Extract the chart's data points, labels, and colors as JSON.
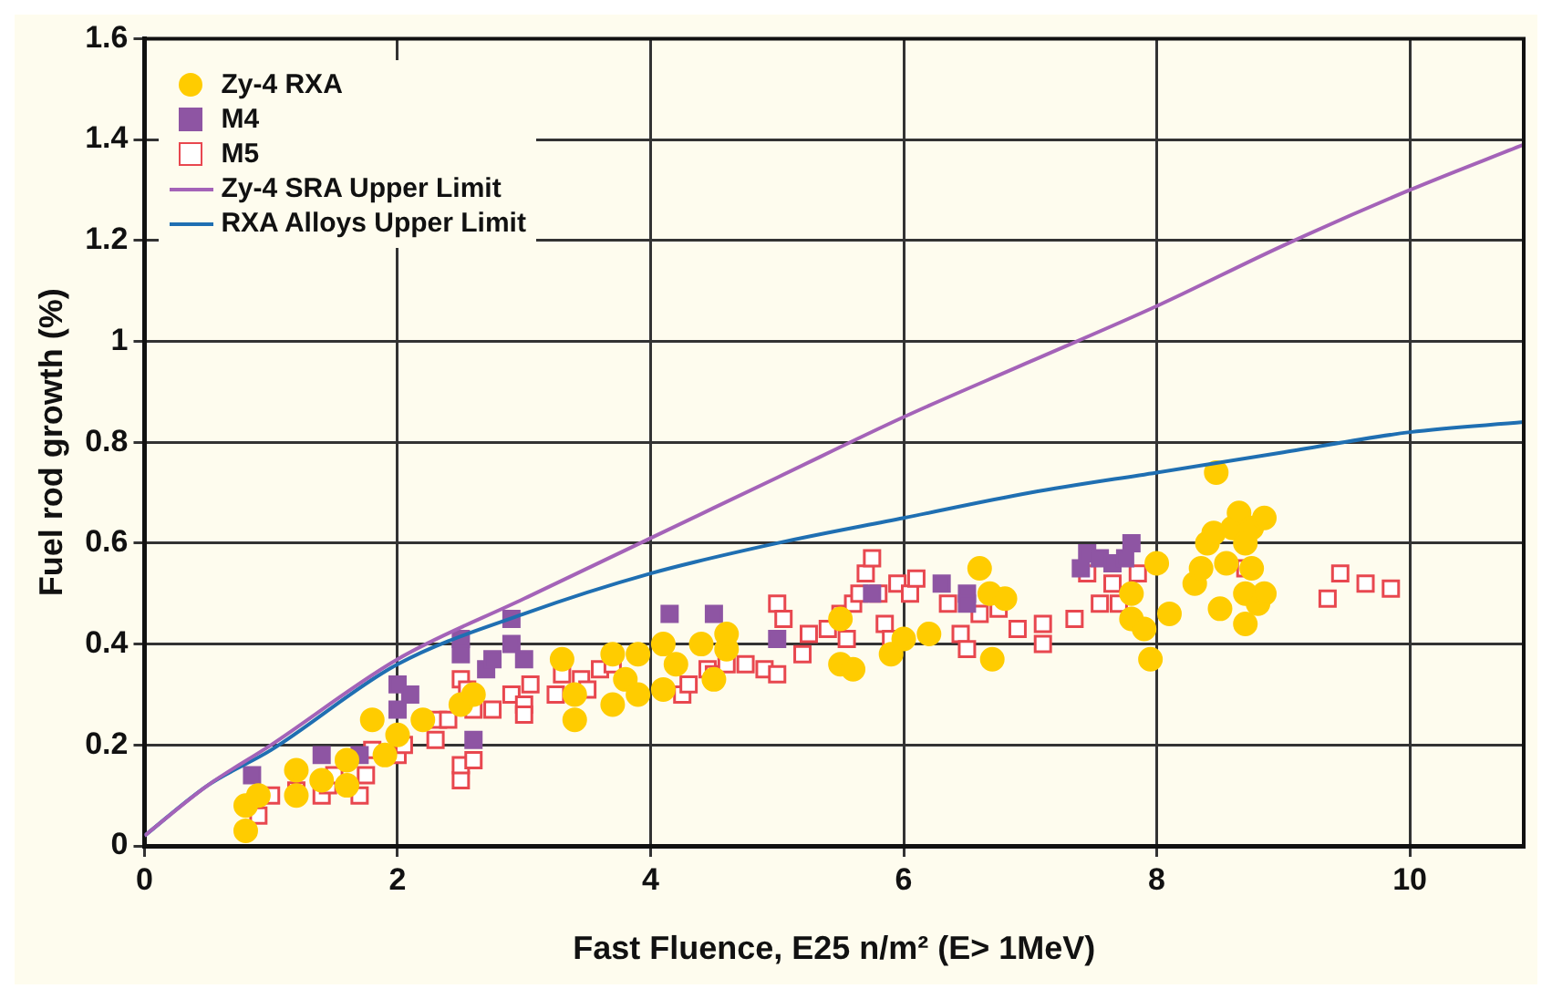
{
  "chart_data": {
    "type": "scatter",
    "xlabel": "Fast Fluence, E25 n/m² (E> 1MeV)",
    "ylabel": "Fuel rod growth (%)",
    "xlim": [
      0,
      10.9
    ],
    "xticks": [
      0,
      2,
      4,
      6,
      8,
      10
    ],
    "ylim": [
      0,
      1.6
    ],
    "yticks": [
      0,
      0.2,
      0.4,
      0.6,
      0.8,
      1,
      1.2,
      1.4,
      1.6
    ],
    "grid": true,
    "legend": "top left",
    "series": [
      {
        "name": "Zy-4 RXA",
        "type": "scatter",
        "marker": "circle",
        "color": "#ffcc00",
        "x": [
          0.8,
          0.8,
          0.9,
          1.2,
          1.2,
          1.4,
          1.6,
          1.6,
          1.8,
          1.9,
          2.0,
          2.2,
          2.5,
          2.6,
          3.3,
          3.4,
          3.4,
          3.7,
          3.7,
          3.8,
          3.9,
          3.9,
          4.1,
          4.1,
          4.2,
          4.4,
          4.5,
          4.6,
          4.6,
          5.5,
          5.6,
          5.5,
          5.9,
          6.0,
          6.2,
          6.68,
          6.6,
          6.7,
          6.8,
          7.8,
          7.8,
          7.9,
          7.95,
          8.0,
          8.1,
          8.3,
          8.35,
          8.4,
          8.45,
          8.5,
          8.55,
          8.6,
          8.47,
          8.65,
          8.7,
          8.7,
          8.7,
          8.75,
          8.75,
          8.8,
          8.85,
          8.85
        ],
        "values": [
          0.03,
          0.08,
          0.1,
          0.15,
          0.1,
          0.13,
          0.17,
          0.12,
          0.25,
          0.18,
          0.22,
          0.25,
          0.28,
          0.3,
          0.37,
          0.25,
          0.3,
          0.38,
          0.28,
          0.33,
          0.3,
          0.38,
          0.4,
          0.31,
          0.36,
          0.4,
          0.33,
          0.39,
          0.42,
          0.36,
          0.35,
          0.45,
          0.38,
          0.41,
          0.42,
          0.5,
          0.55,
          0.37,
          0.49,
          0.45,
          0.5,
          0.43,
          0.37,
          0.56,
          0.46,
          0.52,
          0.55,
          0.6,
          0.62,
          0.47,
          0.56,
          0.63,
          0.74,
          0.66,
          0.5,
          0.44,
          0.6,
          0.55,
          0.63,
          0.48,
          0.65,
          0.5
        ]
      },
      {
        "name": "M4",
        "type": "scatter",
        "marker": "square",
        "color": "#8e55a3",
        "x": [
          0.85,
          1.4,
          1.7,
          2.0,
          2.0,
          2.1,
          2.5,
          2.5,
          2.6,
          2.7,
          2.75,
          2.9,
          2.9,
          3.0,
          4.15,
          4.5,
          5.0,
          5.75,
          6.3,
          6.5,
          6.5,
          7.4,
          7.45,
          7.55,
          7.65,
          7.75,
          7.8
        ],
        "values": [
          0.14,
          0.18,
          0.18,
          0.32,
          0.27,
          0.3,
          0.41,
          0.38,
          0.21,
          0.35,
          0.37,
          0.45,
          0.4,
          0.37,
          0.46,
          0.46,
          0.41,
          0.5,
          0.52,
          0.5,
          0.48,
          0.55,
          0.58,
          0.57,
          0.56,
          0.57,
          0.6
        ]
      },
      {
        "name": "M5",
        "type": "scatter",
        "marker": "square",
        "color": "#e8474f",
        "x": [
          0.9,
          1.0,
          1.2,
          1.4,
          1.45,
          1.5,
          1.7,
          1.75,
          1.8,
          2.0,
          2.05,
          2.32,
          2.3,
          2.4,
          2.5,
          2.5,
          2.5,
          2.55,
          2.6,
          2.6,
          2.75,
          2.9,
          3.0,
          3.0,
          3.05,
          3.25,
          3.3,
          3.45,
          3.5,
          3.6,
          3.7,
          4.25,
          4.3,
          4.45,
          4.5,
          4.6,
          4.75,
          4.9,
          5.0,
          5.0,
          5.05,
          5.2,
          5.25,
          5.4,
          5.5,
          5.55,
          5.6,
          5.65,
          5.7,
          5.75,
          5.8,
          5.85,
          5.9,
          5.95,
          6.05,
          6.1,
          6.35,
          6.45,
          6.5,
          6.6,
          6.75,
          6.9,
          7.1,
          7.1,
          7.35,
          7.45,
          7.55,
          7.65,
          7.7,
          7.85,
          8.7,
          9.35,
          9.45,
          9.65,
          9.85
        ],
        "values": [
          0.06,
          0.1,
          0.11,
          0.1,
          0.12,
          0.14,
          0.1,
          0.14,
          0.19,
          0.18,
          0.2,
          0.25,
          0.21,
          0.25,
          0.13,
          0.16,
          0.33,
          0.31,
          0.17,
          0.27,
          0.27,
          0.3,
          0.28,
          0.26,
          0.32,
          0.3,
          0.34,
          0.33,
          0.31,
          0.35,
          0.36,
          0.3,
          0.32,
          0.35,
          0.34,
          0.36,
          0.36,
          0.35,
          0.34,
          0.48,
          0.45,
          0.38,
          0.42,
          0.43,
          0.46,
          0.41,
          0.48,
          0.5,
          0.54,
          0.57,
          0.5,
          0.44,
          0.41,
          0.52,
          0.5,
          0.53,
          0.48,
          0.42,
          0.39,
          0.46,
          0.47,
          0.43,
          0.44,
          0.4,
          0.45,
          0.54,
          0.48,
          0.52,
          0.48,
          0.54,
          0.55,
          0.49,
          0.54,
          0.52,
          0.51
        ]
      },
      {
        "name": "Zy-4 SRA Upper Limit",
        "type": "line",
        "color": "#a463b8",
        "x": [
          0,
          0.5,
          1,
          2,
          3,
          4,
          5,
          6,
          7,
          8,
          9,
          10,
          10.9
        ],
        "values": [
          0.02,
          0.12,
          0.2,
          0.37,
          0.49,
          0.61,
          0.73,
          0.85,
          0.96,
          1.07,
          1.19,
          1.3,
          1.39
        ]
      },
      {
        "name": "RXA Alloys Upper Limit",
        "type": "line",
        "color": "#1f6fb2",
        "x": [
          0,
          0.5,
          1,
          2,
          3,
          4,
          5,
          6,
          7,
          8,
          9,
          10,
          10.9
        ],
        "values": [
          0.02,
          0.12,
          0.19,
          0.36,
          0.46,
          0.54,
          0.6,
          0.65,
          0.7,
          0.74,
          0.78,
          0.82,
          0.84
        ]
      }
    ]
  }
}
